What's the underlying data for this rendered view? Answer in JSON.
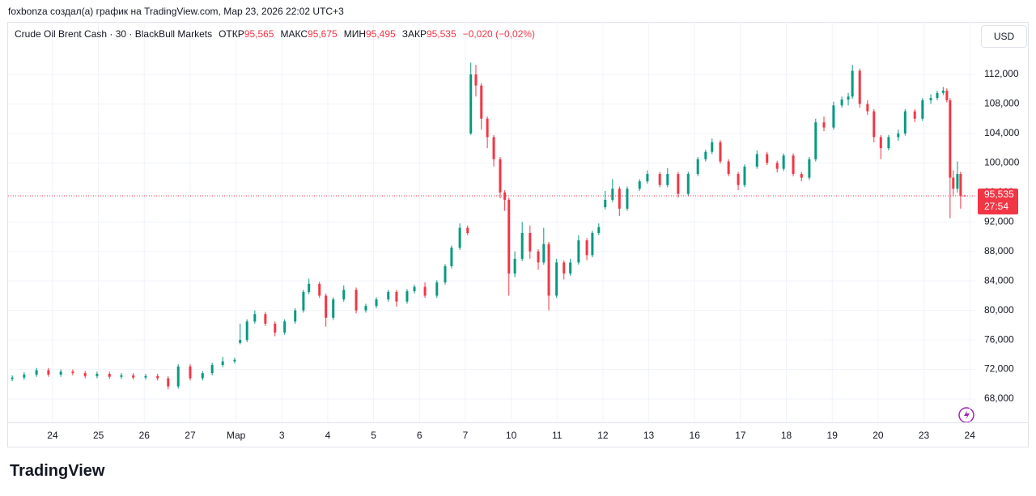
{
  "header": {
    "attribution": "foxbonza создал(а) график на TradingView.com, Мар 23, 2026 22:02 UTC+3",
    "symbol": "Crude Oil Brent Cash · 30 · BlackBull Markets",
    "ohlc": [
      {
        "label": "ОТКР",
        "value": "95,565"
      },
      {
        "label": "МАКС",
        "value": "95,675"
      },
      {
        "label": "МИН",
        "value": "95,495"
      },
      {
        "label": "ЗАКР",
        "value": "95,535"
      }
    ],
    "change": "−0,020 (−0,02%)"
  },
  "currency": "USD",
  "brand": "TradingView",
  "chart_data": {
    "type": "candlestick",
    "up_color": "#089981",
    "down_color": "#f23645",
    "grid": true,
    "xlim": [
      -0.97,
      20.12
    ],
    "xticks": [
      {
        "value": 0,
        "label": "24"
      },
      {
        "value": 1,
        "label": "25"
      },
      {
        "value": 2,
        "label": "26"
      },
      {
        "value": 3,
        "label": "27"
      },
      {
        "value": 4,
        "label": "Мар"
      },
      {
        "value": 5,
        "label": "3"
      },
      {
        "value": 6,
        "label": "4"
      },
      {
        "value": 7,
        "label": "5"
      },
      {
        "value": 8,
        "label": "6"
      },
      {
        "value": 9,
        "label": "7"
      },
      {
        "value": 10,
        "label": "10"
      },
      {
        "value": 11,
        "label": "11"
      },
      {
        "value": 12,
        "label": "12"
      },
      {
        "value": 13,
        "label": "13"
      },
      {
        "value": 14,
        "label": "16"
      },
      {
        "value": 15,
        "label": "17"
      },
      {
        "value": 16,
        "label": "18"
      },
      {
        "value": 17,
        "label": "19"
      },
      {
        "value": 18,
        "label": "20"
      },
      {
        "value": 19,
        "label": "23"
      },
      {
        "value": 20,
        "label": "24"
      }
    ],
    "ylim": [
      64.82,
      119.13
    ],
    "yticks": [
      {
        "value": 68,
        "label": "68,000"
      },
      {
        "value": 72,
        "label": "72,000"
      },
      {
        "value": 76,
        "label": "76,000"
      },
      {
        "value": 80,
        "label": "80,000"
      },
      {
        "value": 84,
        "label": "84,000"
      },
      {
        "value": 88,
        "label": "88,000"
      },
      {
        "value": 92,
        "label": "92,000"
      },
      {
        "value": 96,
        "label": "96,000"
      },
      {
        "value": 100,
        "label": "100,000"
      },
      {
        "value": 104,
        "label": "104,000"
      },
      {
        "value": 108,
        "label": "108,000"
      },
      {
        "value": 112,
        "label": "112,000"
      }
    ],
    "last_price": {
      "value": 95.535,
      "label": "95,535"
    },
    "countdown": "27:54",
    "x": [
      -0.88,
      -0.62,
      -0.35,
      -0.09,
      0.18,
      0.44,
      0.71,
      0.97,
      1.24,
      1.5,
      1.76,
      2.03,
      2.29,
      2.52,
      2.74,
      3.0,
      3.27,
      3.48,
      3.71,
      3.97,
      4.09,
      4.24,
      4.41,
      4.64,
      4.85,
      5.06,
      5.29,
      5.47,
      5.59,
      5.82,
      5.96,
      6.12,
      6.35,
      6.62,
      6.83,
      7.06,
      7.32,
      7.5,
      7.73,
      7.89,
      8.12,
      8.38,
      8.56,
      8.7,
      8.88,
      9.05,
      9.12,
      9.23,
      9.35,
      9.48,
      9.62,
      9.76,
      9.86,
      9.95,
      10.08,
      10.24,
      10.41,
      10.59,
      10.71,
      10.82,
      10.99,
      11.15,
      11.29,
      11.47,
      11.65,
      11.77,
      11.91,
      12.05,
      12.21,
      12.36,
      12.53,
      12.8,
      12.97,
      13.24,
      13.41,
      13.64,
      13.86,
      14.07,
      14.24,
      14.38,
      14.56,
      14.74,
      14.95,
      15.09,
      15.36,
      15.58,
      15.8,
      15.94,
      16.15,
      16.33,
      16.5,
      16.64,
      16.82,
      17.03,
      17.21,
      17.35,
      17.44,
      17.6,
      17.77,
      17.91,
      18.06,
      18.23,
      18.44,
      18.59,
      18.8,
      18.97,
      19.15,
      19.29,
      19.42,
      19.5,
      19.57,
      19.64,
      19.73,
      19.8,
      19.89
    ],
    "open": [
      70.7,
      70.9,
      71.3,
      71.9,
      71.3,
      71.7,
      71.5,
      71.1,
      71.4,
      71.0,
      71.2,
      70.9,
      71.1,
      70.8,
      69.7,
      72.4,
      70.8,
      71.5,
      72.6,
      73.1,
      75.6,
      76.0,
      78.5,
      79.5,
      78.2,
      77.0,
      78.5,
      80.0,
      82.5,
      83.6,
      82.0,
      79.0,
      81.5,
      82.8,
      80.0,
      80.6,
      81.5,
      82.5,
      81.2,
      82.6,
      83.2,
      82.0,
      83.8,
      86.0,
      88.5,
      91.2,
      104.0,
      112.0,
      110.5,
      106.0,
      103.5,
      100.5,
      96.0,
      95.0,
      85.0,
      87.0,
      90.5,
      88.0,
      86.5,
      89.0,
      82.0,
      86.5,
      85.0,
      86.5,
      89.5,
      87.5,
      90.5,
      94.0,
      95.0,
      96.5,
      93.8,
      96.5,
      97.5,
      98.5,
      97.0,
      98.5,
      95.8,
      98.5,
      100.5,
      101.5,
      102.8,
      100.2,
      98.5,
      97.0,
      99.5,
      101.2,
      100.0,
      99.2,
      101.0,
      98.5,
      98.0,
      100.5,
      105.5,
      104.8,
      107.8,
      108.6,
      109.0,
      112.5,
      108.0,
      107.0,
      103.5,
      102.0,
      103.5,
      104.0,
      107.0,
      106.0,
      108.5,
      108.8,
      109.5,
      109.8,
      108.5,
      98.0,
      96.5,
      98.5,
      95.565
    ],
    "high": [
      71.2,
      71.6,
      72.2,
      72.2,
      72.0,
      72.0,
      71.8,
      71.7,
      71.7,
      71.5,
      71.5,
      71.4,
      71.4,
      71.1,
      72.7,
      72.7,
      71.8,
      72.9,
      73.7,
      73.6,
      78.2,
      78.8,
      80.0,
      79.8,
      78.5,
      78.8,
      80.3,
      82.8,
      84.3,
      83.9,
      82.3,
      81.8,
      83.4,
      83.1,
      80.9,
      81.8,
      82.8,
      82.8,
      82.9,
      83.5,
      83.8,
      84.1,
      86.3,
      88.8,
      91.8,
      91.5,
      113.6,
      113.3,
      110.8,
      106.3,
      103.8,
      100.8,
      96.3,
      95.3,
      88.0,
      92.0,
      91.5,
      88.3,
      91.2,
      89.3,
      87.0,
      86.8,
      87.0,
      90.2,
      89.8,
      90.8,
      91.8,
      96.2,
      97.8,
      96.8,
      96.8,
      97.8,
      99.0,
      98.8,
      99.3,
      98.8,
      98.8,
      100.8,
      101.8,
      103.3,
      103.1,
      100.5,
      98.8,
      99.8,
      101.7,
      101.5,
      100.3,
      101.3,
      101.3,
      98.8,
      100.8,
      106.0,
      106.3,
      108.3,
      109.0,
      109.5,
      113.3,
      112.8,
      108.5,
      107.3,
      103.8,
      103.8,
      104.5,
      107.3,
      107.3,
      108.8,
      109.3,
      109.8,
      110.3,
      110.1,
      108.8,
      99.0,
      100.2,
      98.8,
      95.675
    ],
    "low": [
      70.4,
      70.6,
      71.0,
      71.0,
      71.0,
      71.2,
      70.8,
      70.8,
      70.7,
      70.7,
      70.6,
      70.6,
      70.5,
      69.3,
      69.4,
      70.5,
      70.5,
      71.2,
      72.3,
      72.8,
      75.4,
      75.7,
      78.2,
      77.9,
      76.5,
      76.7,
      78.2,
      79.7,
      82.2,
      81.7,
      77.8,
      78.7,
      81.2,
      79.6,
      79.7,
      80.3,
      81.2,
      80.5,
      80.9,
      82.3,
      81.7,
      81.7,
      83.5,
      85.7,
      88.2,
      90.2,
      103.8,
      109.0,
      104.5,
      102.0,
      99.5,
      95.2,
      93.5,
      82.0,
      84.5,
      86.7,
      87.0,
      85.5,
      86.2,
      80.0,
      81.7,
      84.2,
      84.7,
      86.2,
      86.8,
      87.2,
      90.2,
      93.7,
      94.7,
      92.8,
      93.5,
      96.2,
      97.2,
      96.7,
      96.7,
      95.3,
      95.5,
      98.2,
      100.2,
      101.2,
      99.9,
      98.2,
      96.3,
      96.7,
      99.2,
      99.7,
      98.7,
      98.9,
      98.2,
      97.5,
      97.7,
      100.2,
      104.3,
      104.5,
      107.5,
      107.8,
      108.7,
      107.5,
      106.5,
      102.8,
      100.5,
      101.7,
      103.0,
      103.7,
      105.5,
      105.7,
      108.0,
      108.5,
      109.2,
      108.2,
      92.5,
      95.5,
      96.0,
      93.8,
      95.495
    ],
    "close": [
      70.9,
      71.3,
      71.9,
      71.3,
      71.7,
      71.5,
      71.1,
      71.4,
      71.0,
      71.2,
      70.9,
      71.1,
      70.8,
      69.7,
      72.4,
      70.8,
      71.5,
      72.6,
      73.1,
      73.3,
      76.0,
      78.5,
      79.5,
      78.2,
      77.0,
      78.5,
      80.0,
      82.5,
      83.6,
      82.0,
      79.0,
      81.5,
      82.8,
      80.0,
      80.6,
      81.5,
      82.5,
      81.2,
      82.6,
      83.2,
      82.0,
      83.8,
      86.0,
      88.5,
      91.2,
      90.5,
      112.0,
      110.5,
      106.0,
      103.5,
      100.5,
      96.0,
      95.0,
      85.0,
      87.0,
      90.5,
      88.0,
      86.5,
      89.0,
      82.0,
      86.5,
      85.0,
      86.5,
      89.5,
      87.5,
      90.5,
      91.3,
      95.0,
      96.5,
      93.8,
      96.5,
      97.5,
      98.5,
      97.0,
      98.5,
      95.8,
      98.5,
      100.5,
      101.5,
      102.8,
      100.2,
      98.5,
      97.0,
      99.5,
      101.2,
      100.0,
      99.2,
      101.0,
      98.5,
      98.0,
      100.5,
      105.5,
      104.8,
      107.8,
      108.6,
      109.0,
      112.5,
      108.0,
      107.0,
      103.5,
      102.0,
      103.5,
      104.0,
      107.0,
      106.0,
      108.5,
      108.8,
      109.5,
      109.8,
      108.5,
      98.0,
      96.5,
      98.5,
      95.5,
      95.535
    ]
  }
}
